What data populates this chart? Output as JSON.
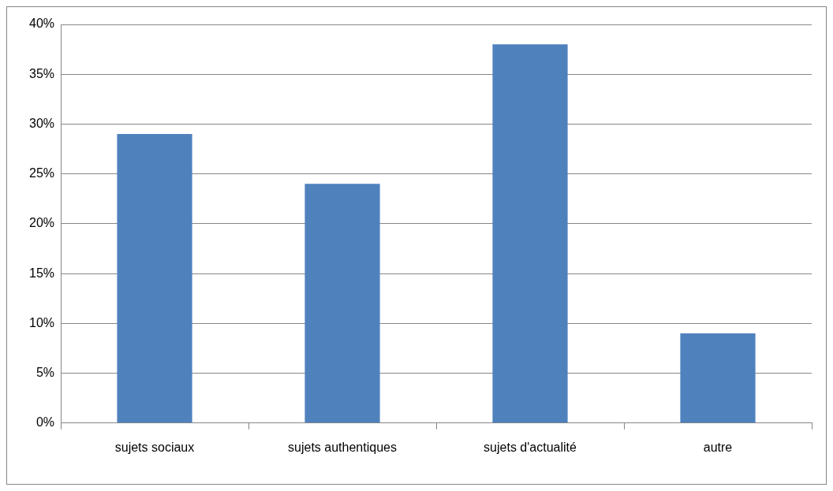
{
  "chart_data": {
    "type": "bar",
    "categories": [
      "sujets sociaux",
      "sujets authentiques",
      "sujets d'actualité",
      "autre"
    ],
    "values": [
      29,
      24,
      38,
      9
    ],
    "color": "#4f81bd",
    "ylim": [
      0,
      40
    ],
    "yticks": [
      {
        "value": 0,
        "label": "0%"
      },
      {
        "value": 5,
        "label": "5%"
      },
      {
        "value": 10,
        "label": "10%"
      },
      {
        "value": 15,
        "label": "15%"
      },
      {
        "value": 20,
        "label": "20%"
      },
      {
        "value": 25,
        "label": "25%"
      },
      {
        "value": 30,
        "label": "30%"
      },
      {
        "value": 35,
        "label": "35%"
      },
      {
        "value": 40,
        "label": "40%"
      }
    ],
    "grid": "y",
    "legend": false
  }
}
